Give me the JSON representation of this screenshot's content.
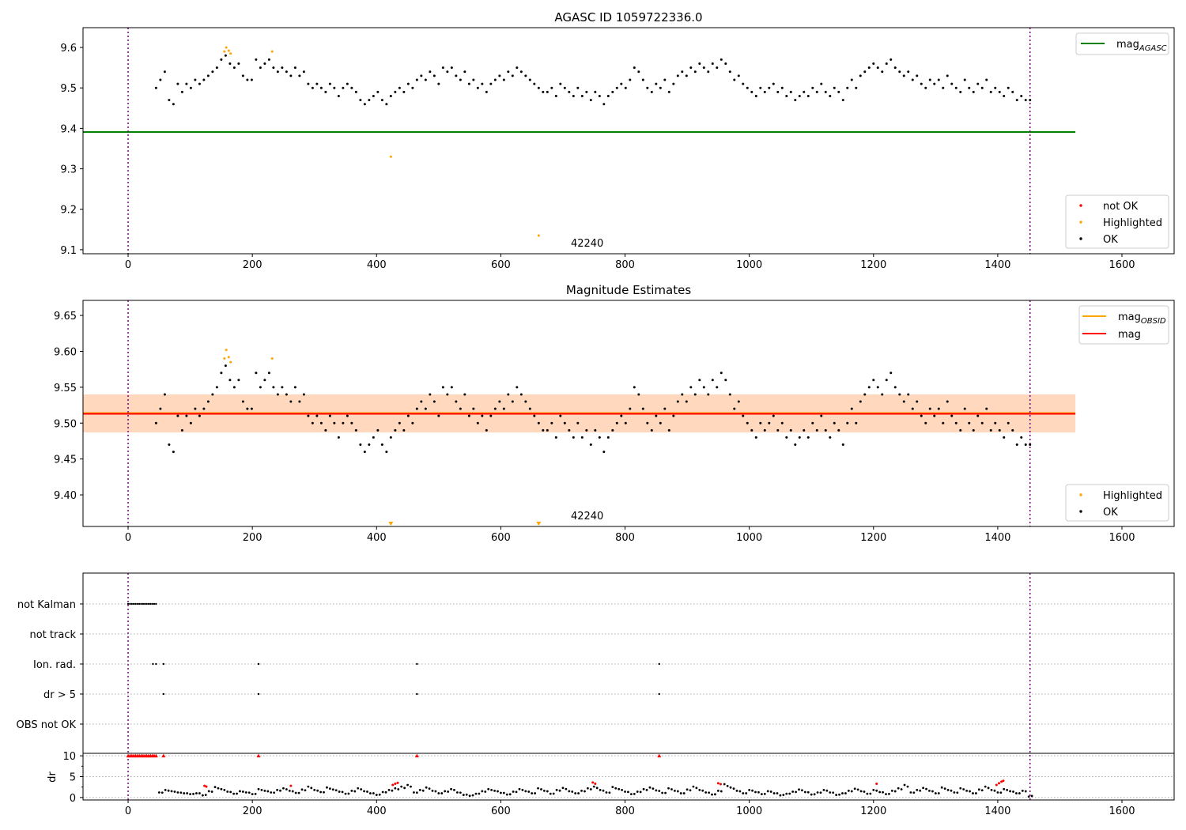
{
  "chart_data": [
    {
      "type": "scatter",
      "title": "AGASC ID 1059722336.0",
      "xlim": [
        -72.6,
        1684
      ],
      "ylim": [
        9.09,
        9.649
      ],
      "xticks": [
        0,
        200,
        400,
        600,
        800,
        1000,
        1200,
        1400,
        1600
      ],
      "yticks": [
        9.1,
        9.2,
        9.3,
        9.4,
        9.5,
        9.6
      ],
      "mag_agasc": 9.391,
      "mag_agasc_x_end": 1525,
      "legend_line": {
        "label": "mag",
        "sub": "AGASC",
        "color": "#008000"
      },
      "legend_points": [
        {
          "label": "not OK",
          "color": "#ff0000"
        },
        {
          "label": "Highlighted",
          "color": "#ffa500"
        },
        {
          "label": "OK",
          "color": "#000000"
        }
      ],
      "highlighted": [
        [
          155,
          9.59
        ],
        [
          158,
          9.6
        ],
        [
          162,
          9.592
        ],
        [
          165,
          9.585
        ],
        [
          232,
          9.59
        ],
        [
          423,
          9.33
        ],
        [
          661,
          9.135
        ]
      ],
      "annotation": {
        "text": "42240",
        "x": 700,
        "y": 9.1
      },
      "vlines": [
        0,
        1452
      ]
    },
    {
      "type": "scatter",
      "title": "Magnitude Estimates",
      "xlim": [
        -72.6,
        1684
      ],
      "ylim": [
        9.356,
        9.671
      ],
      "xticks": [
        0,
        200,
        400,
        600,
        800,
        1000,
        1200,
        1400,
        1600
      ],
      "yticks": [
        9.4,
        9.45,
        9.5,
        9.55,
        9.6,
        9.65
      ],
      "mag": 9.513,
      "band": [
        9.487,
        9.54
      ],
      "band_x_end": 1525,
      "legend_lines": [
        {
          "label": "mag",
          "sub": "OBSID",
          "color": "#ffa500"
        },
        {
          "label": "mag",
          "sub": "",
          "color": "#ff0000"
        }
      ],
      "legend_points": [
        {
          "label": "Highlighted",
          "color": "#ffa500"
        },
        {
          "label": "OK",
          "color": "#000000"
        }
      ],
      "highlighted": [
        [
          155,
          9.59
        ],
        [
          158,
          9.602
        ],
        [
          162,
          9.592
        ],
        [
          165,
          9.585
        ],
        [
          232,
          9.59
        ]
      ],
      "below_range": [
        423,
        661
      ],
      "annotation": {
        "text": "42240",
        "x": 700,
        "y": 9.36
      },
      "vlines": [
        0,
        1452
      ]
    },
    {
      "type": "scatter",
      "title": "",
      "categories": [
        "not Kalman",
        "not track",
        "Ion. rad.",
        "dr > 5",
        "OBS not OK"
      ],
      "flags": {
        "not Kalman": [
          0,
          3,
          6,
          9,
          12,
          15,
          18,
          21,
          24,
          27,
          30,
          33,
          36,
          39,
          42,
          45
        ],
        "not track": [],
        "Ion. rad.": [
          40,
          45,
          57,
          210,
          465,
          855
        ],
        "dr > 5": [
          57,
          210,
          465,
          855
        ],
        "OBS not OK": []
      },
      "dr_ylabel": "dr",
      "dr_yticks": [
        0,
        5,
        10
      ],
      "dr_ylim": [
        -0.6,
        10.6
      ],
      "dr_clipped": [
        0,
        3,
        6,
        9,
        12,
        15,
        18,
        21,
        24,
        27,
        30,
        33,
        36,
        39,
        42,
        45,
        57,
        210,
        465,
        855
      ],
      "dr_red": [
        [
          123,
          2.8
        ],
        [
          126,
          2.6
        ],
        [
          262,
          2.8
        ],
        [
          426,
          3.0
        ],
        [
          430,
          3.3
        ],
        [
          434,
          3.5
        ],
        [
          748,
          3.6
        ],
        [
          752,
          3.3
        ],
        [
          950,
          3.4
        ],
        [
          954,
          3.2
        ],
        [
          1205,
          3.3
        ],
        [
          1398,
          3.0
        ],
        [
          1402,
          3.4
        ],
        [
          1406,
          3.8
        ],
        [
          1409,
          4.0
        ]
      ],
      "dr_x_start": 50,
      "dr_x_step": 10,
      "dr": [
        1.2,
        1.8,
        1.5,
        1.2,
        1.0,
        0.8,
        1.0,
        0.5,
        1.5,
        2.5,
        2.0,
        1.4,
        0.9,
        1.5,
        1.2,
        0.8,
        2.0,
        1.6,
        1.2,
        1.8,
        2.2,
        1.6,
        1.1,
        1.9,
        2.6,
        1.8,
        1.3,
        2.4,
        1.9,
        1.4,
        0.9,
        1.6,
        2.2,
        1.5,
        1.0,
        0.6,
        1.3,
        1.8,
        2.2,
        2.6,
        3.0,
        1.2,
        1.8,
        2.4,
        1.6,
        1.0,
        1.5,
        2.0,
        1.2,
        0.6,
        0.4,
        0.9,
        1.5,
        2.0,
        1.6,
        1.1,
        0.7,
        1.4,
        2.0,
        1.5,
        1.0,
        2.2,
        1.6,
        0.9,
        1.8,
        2.3,
        1.5,
        1.0,
        1.6,
        2.2,
        2.6,
        1.8,
        1.2,
        2.5,
        2.0,
        1.4,
        0.8,
        1.4,
        2.0,
        2.4,
        1.7,
        1.1,
        2.2,
        1.6,
        1.0,
        1.9,
        2.6,
        1.8,
        1.2,
        0.7,
        1.6,
        3.2,
        2.4,
        1.6,
        1.0,
        1.8,
        1.3,
        0.8,
        1.5,
        1.0,
        0.5,
        0.9,
        1.4,
        1.9,
        1.3,
        0.7,
        1.2,
        1.8,
        1.2,
        0.6,
        1.0,
        1.6,
        2.1,
        1.5,
        0.9,
        1.8,
        1.3,
        0.8,
        1.6,
        2.2,
        3.0,
        1.2,
        1.8,
        2.3,
        1.6,
        1.0,
        2.4,
        1.8,
        1.2,
        2.2,
        1.6,
        1.0,
        1.9,
        2.6,
        1.8,
        1.2,
        2.0,
        1.5,
        1.0,
        1.6,
        0.2
      ],
      "vlines": [
        0,
        1452
      ]
    }
  ],
  "mag_series": {
    "x_start": 45,
    "x_step": 7,
    "values": [
      9.5,
      9.52,
      9.54,
      9.47,
      9.46,
      9.51,
      9.49,
      9.51,
      9.5,
      9.52,
      9.51,
      9.52,
      9.53,
      9.54,
      9.55,
      9.57,
      9.58,
      9.56,
      9.55,
      9.56,
      9.53,
      9.52,
      9.52,
      9.57,
      9.55,
      9.56,
      9.57,
      9.55,
      9.54,
      9.55,
      9.54,
      9.53,
      9.55,
      9.53,
      9.54,
      9.51,
      9.5,
      9.51,
      9.5,
      9.49,
      9.51,
      9.5,
      9.48,
      9.5,
      9.51,
      9.5,
      9.49,
      9.47,
      9.46,
      9.47,
      9.48,
      9.49,
      9.47,
      9.46,
      9.48,
      9.49,
      9.5,
      9.49,
      9.51,
      9.5,
      9.52,
      9.53,
      9.52,
      9.54,
      9.53,
      9.51,
      9.55,
      9.54,
      9.55,
      9.53,
      9.52,
      9.54,
      9.51,
      9.52,
      9.5,
      9.51,
      9.49,
      9.51,
      9.52,
      9.53,
      9.52,
      9.54,
      9.53,
      9.55,
      9.54,
      9.53,
      9.52,
      9.51,
      9.5,
      9.49,
      9.49,
      9.5,
      9.48,
      9.51,
      9.5,
      9.49,
      9.48,
      9.5,
      9.48,
      9.49,
      9.47,
      9.49,
      9.48,
      9.46,
      9.48,
      9.49,
      9.5,
      9.51,
      9.5,
      9.52,
      9.55,
      9.54,
      9.52,
      9.5,
      9.49,
      9.51,
      9.5,
      9.52,
      9.49,
      9.51,
      9.53,
      9.54,
      9.53,
      9.55,
      9.54,
      9.56,
      9.55,
      9.54,
      9.56,
      9.55,
      9.57,
      9.56,
      9.54,
      9.52,
      9.53,
      9.51,
      9.5,
      9.49,
      9.48,
      9.5,
      9.49,
      9.5,
      9.51,
      9.49,
      9.5,
      9.48,
      9.49,
      9.47,
      9.48,
      9.49,
      9.48,
      9.5,
      9.49,
      9.51,
      9.49,
      9.48,
      9.5,
      9.49,
      9.47,
      9.5,
      9.52,
      9.5,
      9.53,
      9.54,
      9.55,
      9.56,
      9.55,
      9.54,
      9.56,
      9.57,
      9.55,
      9.54,
      9.53,
      9.54,
      9.52,
      9.53,
      9.51,
      9.5,
      9.52,
      9.51,
      9.52,
      9.5,
      9.53,
      9.51,
      9.5,
      9.49,
      9.52,
      9.5,
      9.49,
      9.51,
      9.5,
      9.52,
      9.49,
      9.5,
      9.49,
      9.48,
      9.5,
      9.49,
      9.47,
      9.48,
      9.47,
      9.47
    ]
  }
}
